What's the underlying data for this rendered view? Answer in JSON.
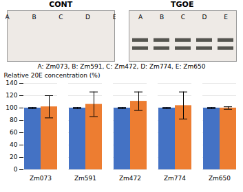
{
  "chart_data": [
    {
      "type": "gel",
      "title": "CONT",
      "categories": [
        "A",
        "B",
        "C",
        "D",
        "E"
      ]
    },
    {
      "type": "gel",
      "title": "TGOE",
      "categories": [
        "A",
        "B",
        "C",
        "D",
        "E"
      ],
      "marker": "band"
    },
    {
      "type": "bar",
      "annotations": [
        "A: Zm073, B: Zm591, C: Zm472, D: Zm774, E: Zm650"
      ],
      "categories": [
        "Zm073",
        "Zm591",
        "Zm472",
        "Zm774",
        "Zm650"
      ],
      "series": [
        {
          "color": "#4472C4",
          "values": [
            100,
            100,
            100,
            100,
            100
          ],
          "errors": [
            1,
            1,
            1,
            1,
            1
          ]
        },
        {
          "color": "#ED7D31",
          "values": [
            102,
            106,
            111,
            104,
            100
          ],
          "errors": [
            18,
            20,
            15,
            22,
            2
          ]
        }
      ],
      "ylabel": "Relative 20E concentration (%)",
      "ylim": [
        0,
        140
      ],
      "yticks": [
        0,
        20,
        40,
        60,
        80,
        100,
        120,
        140
      ],
      "grid": true
    }
  ]
}
